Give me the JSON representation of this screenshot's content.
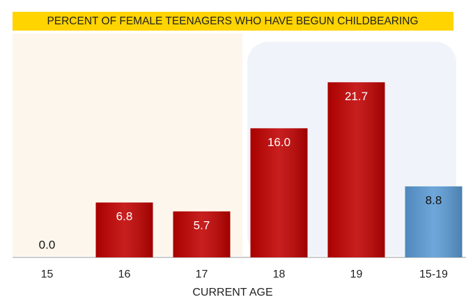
{
  "chart_data": {
    "type": "bar",
    "title": "PERCENT OF FEMALE TEENAGERS  WHO HAVE BEGUN CHILDBEARING",
    "x_label": "CURRENT AGE",
    "categories": [
      "15",
      "16",
      "17",
      "18",
      "19",
      "15-19"
    ],
    "values": [
      0,
      6.8,
      5.7,
      16,
      21.7,
      8.8
    ],
    "value_labels": [
      "0.0",
      "6.8",
      "5.7",
      "16.0",
      "21.7",
      "8.8"
    ],
    "colors": [
      "#c00000",
      "#c00000",
      "#c00000",
      "#c00000",
      "#c00000",
      "#5b9bd5"
    ],
    "ylim": [
      0,
      25
    ]
  }
}
